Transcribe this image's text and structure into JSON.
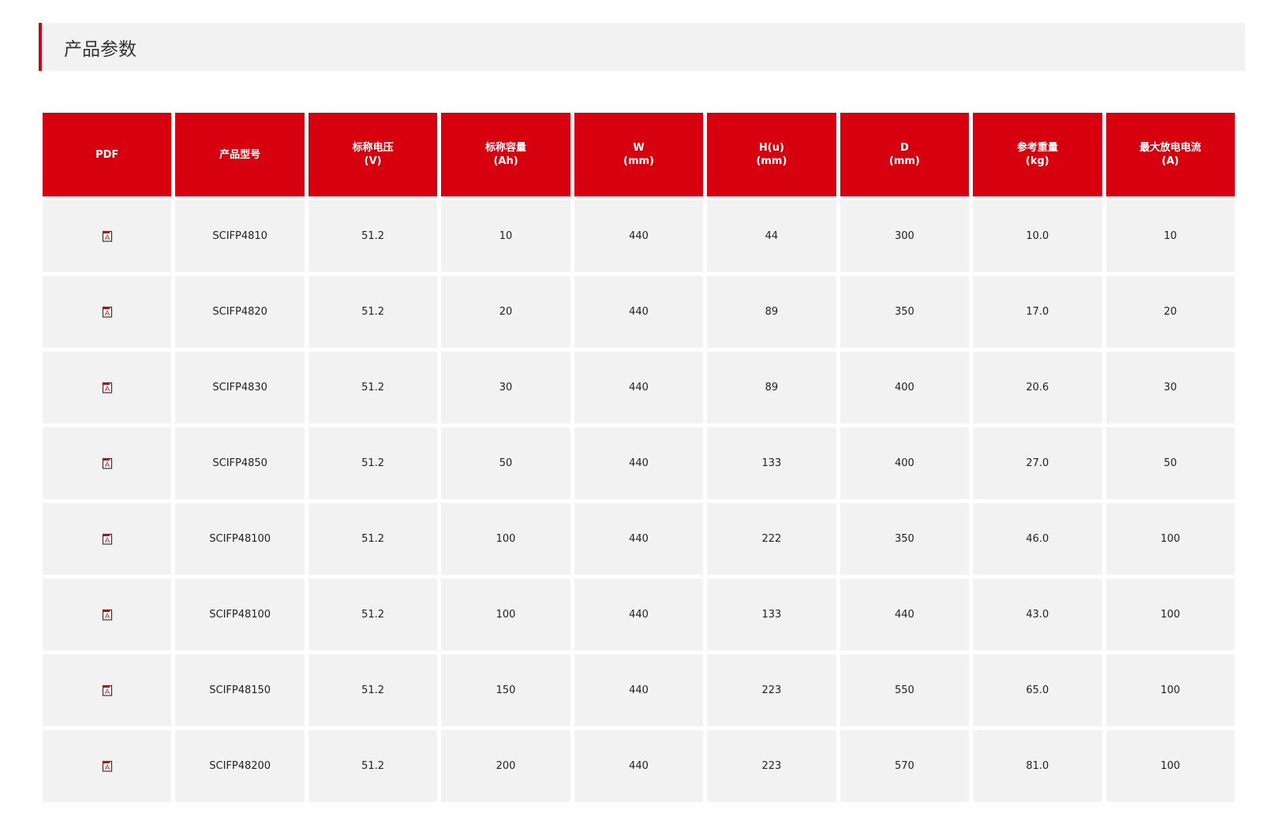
{
  "section_title": "产品参数",
  "colors": {
    "accent": "#d7000f",
    "cell_bg": "#f2f2f2"
  },
  "table": {
    "headers": [
      {
        "line1": "PDF",
        "line2": ""
      },
      {
        "line1": "产品型号",
        "line2": ""
      },
      {
        "line1": "标称电压",
        "line2": "(V)"
      },
      {
        "line1": "标称容量",
        "line2": "(Ah)"
      },
      {
        "line1": "W",
        "line2": "(mm)"
      },
      {
        "line1": "H(u)",
        "line2": "(mm)"
      },
      {
        "line1": "D",
        "line2": "(mm)"
      },
      {
        "line1": "参考重量",
        "line2": "(kg)"
      },
      {
        "line1": "最大放电电流",
        "line2": "(A)"
      }
    ],
    "pdf_icon": "pdf-file-icon",
    "rows": [
      [
        "SCIFP4810",
        "51.2",
        "10",
        "440",
        "44",
        "300",
        "10.0",
        "10"
      ],
      [
        "SCIFP4820",
        "51.2",
        "20",
        "440",
        "89",
        "350",
        "17.0",
        "20"
      ],
      [
        "SCIFP4830",
        "51.2",
        "30",
        "440",
        "89",
        "400",
        "20.6",
        "30"
      ],
      [
        "SCIFP4850",
        "51.2",
        "50",
        "440",
        "133",
        "400",
        "27.0",
        "50"
      ],
      [
        "SCIFP48100",
        "51.2",
        "100",
        "440",
        "222",
        "350",
        "46.0",
        "100"
      ],
      [
        "SCIFP48100",
        "51.2",
        "100",
        "440",
        "133",
        "440",
        "43.0",
        "100"
      ],
      [
        "SCIFP48150",
        "51.2",
        "150",
        "440",
        "223",
        "550",
        "65.0",
        "100"
      ],
      [
        "SCIFP48200",
        "51.2",
        "200",
        "440",
        "223",
        "570",
        "81.0",
        "100"
      ]
    ]
  }
}
